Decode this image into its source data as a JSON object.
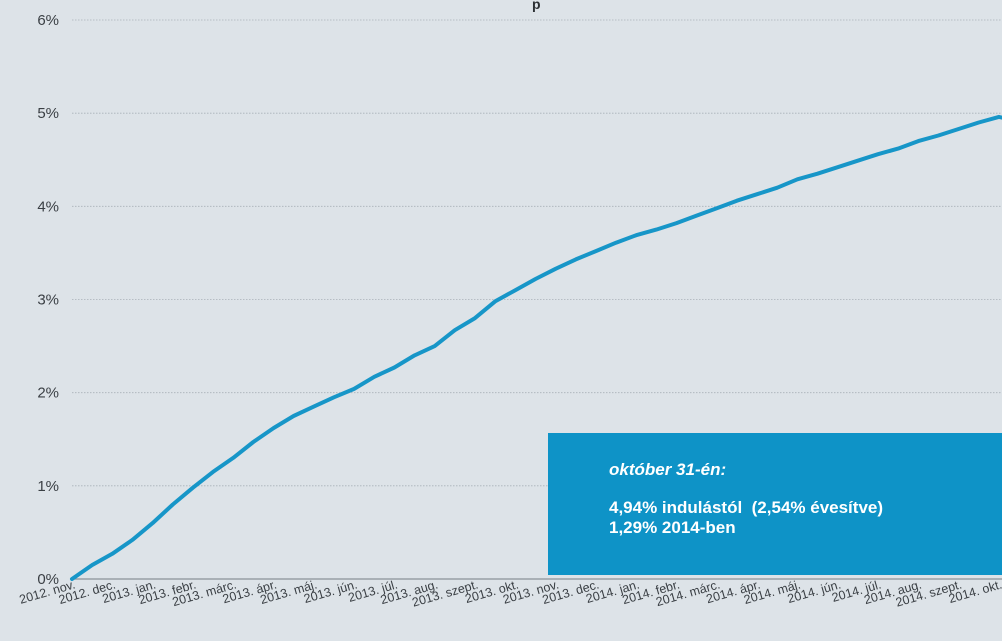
{
  "chart_data": {
    "type": "line",
    "title": "",
    "xlabel": "",
    "ylabel": "",
    "ylim": [
      0,
      6
    ],
    "y_ticks": [
      "0%",
      "1%",
      "2%",
      "3%",
      "4%",
      "5%",
      "6%"
    ],
    "grid": true,
    "categories": [
      "2012. nov.",
      "2012. dec.",
      "2013. jan.",
      "2013. febr.",
      "2013. márc.",
      "2013. ápr.",
      "2013. máj.",
      "2013. jún.",
      "2013. júl.",
      "2013. aug.",
      "2013. szept.",
      "2013. okt.",
      "2013. nov.",
      "2013. dec.",
      "2014. jan.",
      "2014. febr.",
      "2014. márc.",
      "2014. ápr.",
      "2014. máj.",
      "2014. jún.",
      "2014. júl.",
      "2014. aug.",
      "2014. szept.",
      "2014. okt."
    ],
    "series": [
      {
        "name": "",
        "color": "#1796c8",
        "x": [
          0,
          0.5,
          1,
          1.5,
          2,
          2.5,
          3,
          3.5,
          4,
          4.5,
          5,
          5.5,
          6,
          6.5,
          7,
          7.5,
          8,
          8.5,
          9,
          9.5,
          10,
          10.5,
          11,
          11.5,
          12,
          12.5,
          13,
          13.5,
          14,
          14.5,
          15,
          15.5,
          16,
          16.5,
          17,
          17.5,
          18,
          18.5,
          19,
          19.5,
          20,
          20.5,
          21,
          21.5,
          22,
          22.5,
          23,
          23.2
        ],
        "values": [
          0.0,
          0.15,
          0.27,
          0.42,
          0.6,
          0.8,
          0.98,
          1.15,
          1.3,
          1.47,
          1.62,
          1.75,
          1.85,
          1.95,
          2.04,
          2.17,
          2.27,
          2.4,
          2.5,
          2.67,
          2.8,
          2.98,
          3.1,
          3.22,
          3.33,
          3.43,
          3.52,
          3.61,
          3.69,
          3.75,
          3.82,
          3.9,
          3.98,
          4.06,
          4.13,
          4.2,
          4.29,
          4.35,
          4.42,
          4.49,
          4.56,
          4.62,
          4.7,
          4.76,
          4.83,
          4.9,
          4.96,
          4.94
        ]
      }
    ]
  },
  "title_fragment": "p",
  "callout": {
    "heading": "október 31-én:",
    "line1": "4,94% indulástól  (2,54% évesítve)",
    "line2": "1,29% 2014-ben"
  }
}
